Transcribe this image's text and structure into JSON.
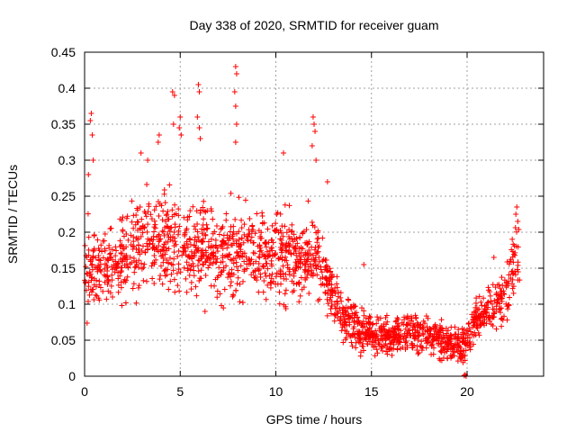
{
  "chart_data": {
    "type": "scatter",
    "title": "Day 338 of 2020, SRMTID for receiver guam",
    "xlabel": "GPS time / hours",
    "ylabel": "SRMTID / TECUs",
    "xlim": [
      0,
      24
    ],
    "ylim": [
      0,
      0.45
    ],
    "xticks": [
      0,
      5,
      10,
      15,
      20
    ],
    "yticks": [
      0,
      0.05,
      0.1,
      0.15,
      0.2,
      0.25,
      0.3,
      0.35,
      0.4,
      0.45
    ],
    "grid": true,
    "marker": "+",
    "series": [
      {
        "name": "SRMTID",
        "color": "#ff0000",
        "profile": [
          {
            "x": 0.0,
            "y": 0.15,
            "spread": 0.05
          },
          {
            "x": 1.0,
            "y": 0.15,
            "spread": 0.05
          },
          {
            "x": 2.0,
            "y": 0.16,
            "spread": 0.05
          },
          {
            "x": 3.0,
            "y": 0.19,
            "spread": 0.06
          },
          {
            "x": 4.0,
            "y": 0.19,
            "spread": 0.06
          },
          {
            "x": 5.0,
            "y": 0.18,
            "spread": 0.06
          },
          {
            "x": 6.0,
            "y": 0.18,
            "spread": 0.06
          },
          {
            "x": 7.0,
            "y": 0.17,
            "spread": 0.06
          },
          {
            "x": 8.0,
            "y": 0.17,
            "spread": 0.06
          },
          {
            "x": 9.0,
            "y": 0.17,
            "spread": 0.05
          },
          {
            "x": 10.0,
            "y": 0.17,
            "spread": 0.06
          },
          {
            "x": 11.0,
            "y": 0.16,
            "spread": 0.05
          },
          {
            "x": 12.0,
            "y": 0.17,
            "spread": 0.05
          },
          {
            "x": 12.8,
            "y": 0.13,
            "spread": 0.04
          },
          {
            "x": 13.5,
            "y": 0.08,
            "spread": 0.03
          },
          {
            "x": 14.5,
            "y": 0.06,
            "spread": 0.025
          },
          {
            "x": 16.0,
            "y": 0.055,
            "spread": 0.02
          },
          {
            "x": 17.0,
            "y": 0.06,
            "spread": 0.025
          },
          {
            "x": 18.0,
            "y": 0.055,
            "spread": 0.02
          },
          {
            "x": 19.0,
            "y": 0.045,
            "spread": 0.02
          },
          {
            "x": 19.8,
            "y": 0.04,
            "spread": 0.02
          },
          {
            "x": 20.5,
            "y": 0.08,
            "spread": 0.025
          },
          {
            "x": 21.5,
            "y": 0.1,
            "spread": 0.03
          },
          {
            "x": 22.2,
            "y": 0.13,
            "spread": 0.04
          },
          {
            "x": 22.8,
            "y": 0.17,
            "spread": 0.04
          }
        ],
        "points_per_hour": 85,
        "spikes": [
          {
            "x": 0.35,
            "y": 0.365
          },
          {
            "x": 0.3,
            "y": 0.355
          },
          {
            "x": 0.4,
            "y": 0.335
          },
          {
            "x": 0.45,
            "y": 0.3
          },
          {
            "x": 0.2,
            "y": 0.28
          },
          {
            "x": 3.9,
            "y": 0.335
          },
          {
            "x": 3.85,
            "y": 0.325
          },
          {
            "x": 4.6,
            "y": 0.395
          },
          {
            "x": 4.7,
            "y": 0.39
          },
          {
            "x": 4.65,
            "y": 0.35
          },
          {
            "x": 5.0,
            "y": 0.36
          },
          {
            "x": 4.95,
            "y": 0.345
          },
          {
            "x": 5.05,
            "y": 0.335
          },
          {
            "x": 5.95,
            "y": 0.405
          },
          {
            "x": 6.0,
            "y": 0.395
          },
          {
            "x": 5.9,
            "y": 0.36
          },
          {
            "x": 6.05,
            "y": 0.33
          },
          {
            "x": 6.0,
            "y": 0.345
          },
          {
            "x": 7.9,
            "y": 0.43
          },
          {
            "x": 7.95,
            "y": 0.42
          },
          {
            "x": 7.85,
            "y": 0.395
          },
          {
            "x": 7.9,
            "y": 0.375
          },
          {
            "x": 7.95,
            "y": 0.35
          },
          {
            "x": 7.9,
            "y": 0.325
          },
          {
            "x": 11.95,
            "y": 0.36
          },
          {
            "x": 12.0,
            "y": 0.35
          },
          {
            "x": 12.05,
            "y": 0.34
          },
          {
            "x": 11.9,
            "y": 0.32
          },
          {
            "x": 12.1,
            "y": 0.3
          },
          {
            "x": 2.95,
            "y": 0.31
          },
          {
            "x": 3.3,
            "y": 0.3
          },
          {
            "x": 10.4,
            "y": 0.31
          },
          {
            "x": 12.7,
            "y": 0.27
          },
          {
            "x": 14.6,
            "y": 0.155
          },
          {
            "x": 22.6,
            "y": 0.235
          },
          {
            "x": 22.55,
            "y": 0.225
          },
          {
            "x": 22.65,
            "y": 0.215
          },
          {
            "x": 21.4,
            "y": 0.165
          },
          {
            "x": 19.9,
            "y": 0.002
          },
          {
            "x": 19.95,
            "y": 0.0
          },
          {
            "x": 19.85,
            "y": 0.001
          }
        ]
      }
    ]
  }
}
